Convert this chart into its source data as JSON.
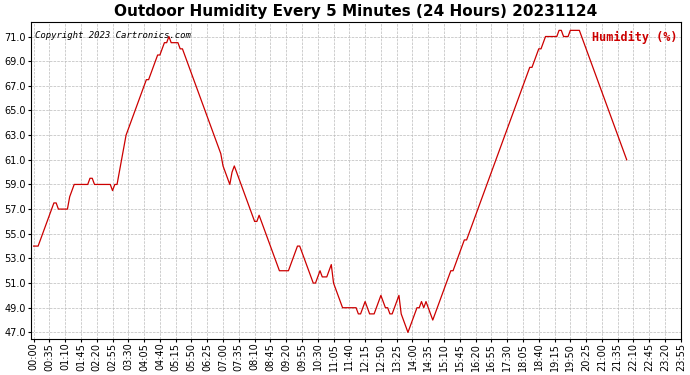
{
  "title": "Outdoor Humidity Every 5 Minutes (24 Hours) 20231124",
  "copyright_text": "Copyright 2023 Cartronics.com",
  "legend_label": "Humidity (%)",
  "line_color": "#cc0000",
  "legend_color": "#cc0000",
  "bg_color": "#ffffff",
  "grid_color": "#bbbbbb",
  "title_color": "#000000",
  "copyright_color": "#000000",
  "ylim": [
    46.5,
    72.2
  ],
  "yticks": [
    47.0,
    49.0,
    51.0,
    53.0,
    55.0,
    57.0,
    59.0,
    61.0,
    63.0,
    65.0,
    67.0,
    69.0,
    71.0
  ],
  "humidity_values": [
    54.0,
    54.0,
    54.0,
    54.5,
    55.0,
    55.5,
    56.0,
    56.5,
    57.0,
    57.5,
    57.5,
    57.0,
    57.0,
    57.0,
    57.0,
    57.0,
    58.0,
    58.5,
    59.0,
    59.0,
    59.0,
    59.0,
    59.0,
    59.0,
    59.0,
    59.5,
    59.5,
    59.0,
    59.0,
    59.0,
    59.0,
    59.0,
    59.0,
    59.0,
    59.0,
    58.5,
    59.0,
    59.0,
    60.0,
    61.0,
    62.0,
    63.0,
    63.5,
    64.0,
    64.5,
    65.0,
    65.5,
    66.0,
    66.5,
    67.0,
    67.5,
    67.5,
    68.0,
    68.5,
    69.0,
    69.5,
    69.5,
    70.0,
    70.5,
    70.5,
    71.0,
    70.5,
    70.5,
    70.5,
    70.5,
    70.0,
    70.0,
    69.5,
    69.0,
    68.5,
    68.0,
    67.5,
    67.0,
    66.5,
    66.0,
    65.5,
    65.0,
    64.5,
    64.0,
    63.5,
    63.0,
    62.5,
    62.0,
    61.5,
    60.5,
    60.0,
    59.5,
    59.0,
    60.0,
    60.5,
    60.0,
    59.5,
    59.0,
    58.5,
    58.0,
    57.5,
    57.0,
    56.5,
    56.0,
    56.0,
    56.5,
    56.0,
    55.5,
    55.0,
    54.5,
    54.0,
    53.5,
    53.0,
    52.5,
    52.0,
    52.0,
    52.0,
    52.0,
    52.0,
    52.5,
    53.0,
    53.5,
    54.0,
    54.0,
    53.5,
    53.0,
    52.5,
    52.0,
    51.5,
    51.0,
    51.0,
    51.5,
    52.0,
    51.5,
    51.5,
    51.5,
    52.0,
    52.5,
    51.0,
    50.5,
    50.0,
    49.5,
    49.0,
    49.0,
    49.0,
    49.0,
    49.0,
    49.0,
    49.0,
    48.5,
    48.5,
    49.0,
    49.5,
    49.0,
    48.5,
    48.5,
    48.5,
    49.0,
    49.5,
    50.0,
    49.5,
    49.0,
    49.0,
    48.5,
    48.5,
    49.0,
    49.5,
    50.0,
    48.5,
    48.0,
    47.5,
    47.0,
    47.5,
    48.0,
    48.5,
    49.0,
    49.0,
    49.5,
    49.0,
    49.5,
    49.0,
    48.5,
    48.0,
    48.5,
    49.0,
    49.5,
    50.0,
    50.5,
    51.0,
    51.5,
    52.0,
    52.0,
    52.5,
    53.0,
    53.5,
    54.0,
    54.5,
    54.5,
    55.0,
    55.5,
    56.0,
    56.5,
    57.0,
    57.5,
    58.0,
    58.5,
    59.0,
    59.5,
    60.0,
    60.5,
    61.0,
    61.5,
    62.0,
    62.5,
    63.0,
    63.5,
    64.0,
    64.5,
    65.0,
    65.5,
    66.0,
    66.5,
    67.0,
    67.5,
    68.0,
    68.5,
    68.5,
    69.0,
    69.5,
    70.0,
    70.0,
    70.5,
    71.0,
    71.0,
    71.0,
    71.0,
    71.0,
    71.0,
    71.5,
    71.5,
    71.0,
    71.0,
    71.0,
    71.5,
    71.5,
    71.5,
    71.5,
    71.5,
    71.0,
    70.5,
    70.0,
    69.5,
    69.0,
    68.5,
    68.0,
    67.5,
    67.0,
    66.5,
    66.0,
    65.5,
    65.0,
    64.5,
    64.0,
    63.5,
    63.0,
    62.5,
    62.0,
    61.5,
    61.0
  ],
  "x_tick_labels": [
    "00:00",
    "00:35",
    "01:10",
    "01:45",
    "02:20",
    "02:55",
    "03:30",
    "04:05",
    "04:40",
    "05:15",
    "05:50",
    "06:25",
    "07:00",
    "07:35",
    "08:10",
    "08:45",
    "09:20",
    "09:55",
    "10:30",
    "11:05",
    "11:40",
    "12:15",
    "12:50",
    "13:25",
    "14:00",
    "14:35",
    "15:10",
    "15:45",
    "16:20",
    "16:55",
    "17:30",
    "18:05",
    "18:40",
    "19:15",
    "19:50",
    "20:25",
    "21:00",
    "21:35",
    "22:10",
    "22:45",
    "23:20",
    "23:55"
  ],
  "title_fontsize": 11,
  "tick_fontsize": 7,
  "copyright_fontsize": 6.5,
  "legend_fontsize": 8.5
}
